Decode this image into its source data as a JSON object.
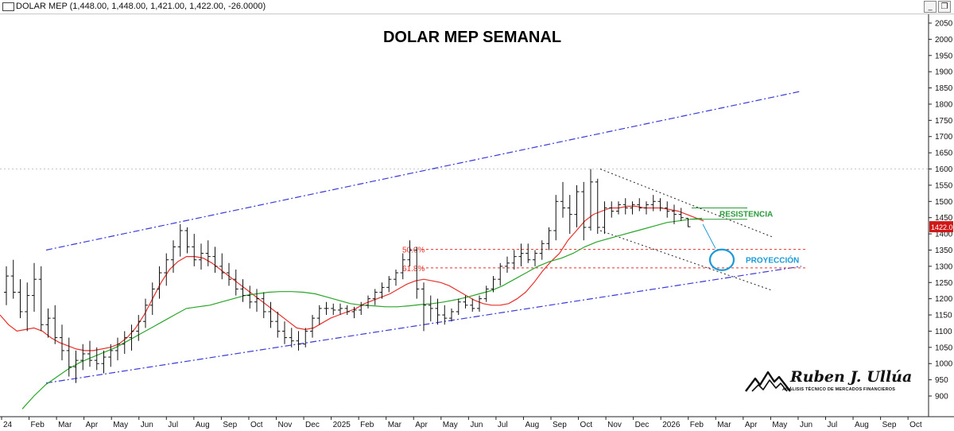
{
  "window": {
    "title": "DOLAR MEP (1,448.00, 1,448.00, 1,421.00, 1,422.00, -26.0000)",
    "minimize_symbol": "_",
    "restore_symbol": "❐"
  },
  "chart_data": {
    "type": "ohlc",
    "title": "DOLAR MEP SEMANAL",
    "last_price_label": "1422.00",
    "y_ticks": [
      2050,
      2000,
      1950,
      1900,
      1850,
      1800,
      1750,
      1700,
      1650,
      1600,
      1550,
      1500,
      1450,
      1400,
      1350,
      1300,
      1250,
      1200,
      1150,
      1100,
      1050,
      1000,
      950,
      900
    ],
    "ylim": [
      855,
      2080
    ],
    "x_ticks": [
      "24",
      "Feb",
      "Mar",
      "Apr",
      "May",
      "Jun",
      "Jul",
      "Aug",
      "Sep",
      "Oct",
      "Nov",
      "Dec",
      "2025",
      "Feb",
      "Mar",
      "Apr",
      "May",
      "Jun",
      "Jul",
      "Aug",
      "Sep",
      "Oct",
      "Nov",
      "Dec",
      "2026",
      "Feb",
      "Mar",
      "Apr",
      "May",
      "Jun",
      "Jul",
      "Aug",
      "Sep",
      "Oct"
    ],
    "fib_levels": [
      {
        "label": "50.0%",
        "value": 1352
      },
      {
        "label": "61.8%",
        "value": 1295
      }
    ],
    "high_reference": 1600,
    "annotations": {
      "resistance": "RESISTENCIA",
      "projection": "PROYECCIÓN"
    },
    "colors": {
      "fast_ma": "#e8302a",
      "slow_ma": "#2aa52a",
      "channel": "#3a3ad8",
      "fib": "#e8302a",
      "resistance_text": "#2a9a3a",
      "projection_text": "#1a9ad8",
      "bars": "#111111"
    },
    "series": [
      {
        "name": "price",
        "ohlc": [
          [
            1220,
            1300,
            1180,
            1270
          ],
          [
            1270,
            1320,
            1200,
            1220
          ],
          [
            1220,
            1260,
            1140,
            1160
          ],
          [
            1160,
            1250,
            1100,
            1210
          ],
          [
            1210,
            1310,
            1160,
            1260
          ],
          [
            1260,
            1300,
            1100,
            1120
          ],
          [
            1120,
            1170,
            1080,
            1140
          ],
          [
            1140,
            1180,
            1060,
            1080
          ],
          [
            1080,
            1120,
            1010,
            1040
          ],
          [
            1040,
            1080,
            960,
            990
          ],
          [
            990,
            1040,
            940,
            1010
          ],
          [
            1010,
            1060,
            980,
            1030
          ],
          [
            1030,
            1070,
            990,
            1010
          ],
          [
            1010,
            1050,
            980,
            1000
          ],
          [
            1000,
            1040,
            970,
            1020
          ],
          [
            1020,
            1060,
            990,
            1040
          ],
          [
            1040,
            1080,
            1010,
            1060
          ],
          [
            1060,
            1100,
            1030,
            1080
          ],
          [
            1080,
            1120,
            1040,
            1100
          ],
          [
            1100,
            1150,
            1070,
            1130
          ],
          [
            1130,
            1200,
            1110,
            1180
          ],
          [
            1180,
            1250,
            1150,
            1230
          ],
          [
            1230,
            1300,
            1200,
            1280
          ],
          [
            1280,
            1340,
            1240,
            1320
          ],
          [
            1320,
            1380,
            1280,
            1360
          ],
          [
            1360,
            1430,
            1330,
            1410
          ],
          [
            1410,
            1420,
            1340,
            1360
          ],
          [
            1360,
            1400,
            1300,
            1320
          ],
          [
            1320,
            1370,
            1290,
            1340
          ],
          [
            1340,
            1380,
            1300,
            1330
          ],
          [
            1330,
            1360,
            1280,
            1300
          ],
          [
            1300,
            1340,
            1260,
            1280
          ],
          [
            1280,
            1310,
            1240,
            1260
          ],
          [
            1260,
            1290,
            1210,
            1230
          ],
          [
            1230,
            1260,
            1190,
            1210
          ],
          [
            1210,
            1240,
            1170,
            1190
          ],
          [
            1190,
            1230,
            1160,
            1200
          ],
          [
            1200,
            1220,
            1140,
            1160
          ],
          [
            1160,
            1190,
            1110,
            1130
          ],
          [
            1130,
            1160,
            1080,
            1100
          ],
          [
            1100,
            1130,
            1060,
            1080
          ],
          [
            1080,
            1110,
            1050,
            1070
          ],
          [
            1070,
            1100,
            1040,
            1060
          ],
          [
            1060,
            1110,
            1050,
            1100
          ],
          [
            1100,
            1150,
            1080,
            1140
          ],
          [
            1140,
            1180,
            1120,
            1170
          ],
          [
            1170,
            1190,
            1150,
            1170
          ],
          [
            1170,
            1185,
            1150,
            1165
          ],
          [
            1165,
            1185,
            1150,
            1170
          ],
          [
            1170,
            1180,
            1150,
            1160
          ],
          [
            1160,
            1175,
            1140,
            1165
          ],
          [
            1165,
            1190,
            1150,
            1180
          ],
          [
            1180,
            1210,
            1170,
            1200
          ],
          [
            1200,
            1230,
            1180,
            1220
          ],
          [
            1220,
            1250,
            1200,
            1235
          ],
          [
            1235,
            1270,
            1220,
            1260
          ],
          [
            1260,
            1290,
            1240,
            1280
          ],
          [
            1280,
            1340,
            1260,
            1320
          ],
          [
            1320,
            1380,
            1300,
            1350
          ],
          [
            1350,
            1360,
            1200,
            1230
          ],
          [
            1230,
            1250,
            1100,
            1180
          ],
          [
            1180,
            1210,
            1130,
            1170
          ],
          [
            1170,
            1200,
            1120,
            1150
          ],
          [
            1150,
            1180,
            1120,
            1140
          ],
          [
            1140,
            1170,
            1130,
            1160
          ],
          [
            1160,
            1200,
            1150,
            1190
          ],
          [
            1190,
            1210,
            1170,
            1180
          ],
          [
            1180,
            1200,
            1160,
            1170
          ],
          [
            1170,
            1210,
            1160,
            1200
          ],
          [
            1200,
            1240,
            1190,
            1230
          ],
          [
            1230,
            1270,
            1220,
            1260
          ],
          [
            1260,
            1310,
            1240,
            1300
          ],
          [
            1300,
            1330,
            1280,
            1310
          ],
          [
            1310,
            1350,
            1290,
            1330
          ],
          [
            1330,
            1370,
            1300,
            1340
          ],
          [
            1340,
            1370,
            1310,
            1320
          ],
          [
            1320,
            1350,
            1300,
            1340
          ],
          [
            1340,
            1380,
            1320,
            1370
          ],
          [
            1370,
            1420,
            1350,
            1410
          ],
          [
            1410,
            1520,
            1380,
            1500
          ],
          [
            1500,
            1560,
            1450,
            1480
          ],
          [
            1480,
            1520,
            1400,
            1460
          ],
          [
            1460,
            1550,
            1420,
            1530
          ],
          [
            1530,
            1560,
            1380,
            1420
          ],
          [
            1420,
            1600,
            1410,
            1560
          ],
          [
            1560,
            1570,
            1400,
            1420
          ],
          [
            1420,
            1500,
            1400,
            1480
          ],
          [
            1480,
            1500,
            1450,
            1470
          ],
          [
            1470,
            1500,
            1460,
            1490
          ],
          [
            1490,
            1510,
            1460,
            1480
          ],
          [
            1480,
            1500,
            1460,
            1490
          ],
          [
            1490,
            1510,
            1470,
            1480
          ],
          [
            1480,
            1500,
            1460,
            1490
          ],
          [
            1490,
            1520,
            1470,
            1500
          ],
          [
            1500,
            1510,
            1470,
            1480
          ],
          [
            1480,
            1500,
            1450,
            1470
          ],
          [
            1470,
            1490,
            1430,
            1460
          ],
          [
            1460,
            1480,
            1440,
            1450
          ],
          [
            1448,
            1448,
            1421,
            1422
          ]
        ]
      },
      {
        "name": "fast_ma",
        "values": [
          1150,
          1120,
          1100,
          1105,
          1110,
          1100,
          1080,
          1065,
          1055,
          1045,
          1040,
          1040,
          1045,
          1050,
          1060,
          1080,
          1110,
          1150,
          1200,
          1250,
          1290,
          1315,
          1330,
          1330,
          1325,
          1310,
          1290,
          1270,
          1250,
          1230,
          1210,
          1190,
          1170,
          1150,
          1130,
          1110,
          1105,
          1110,
          1125,
          1140,
          1150,
          1160,
          1170,
          1185,
          1195,
          1205,
          1215,
          1230,
          1245,
          1255,
          1260,
          1255,
          1250,
          1240,
          1225,
          1210,
          1195,
          1185,
          1180,
          1180,
          1185,
          1200,
          1220,
          1250,
          1285,
          1315,
          1340,
          1380,
          1410,
          1440,
          1460,
          1470,
          1480,
          1480,
          1485,
          1485,
          1480,
          1480,
          1480,
          1475,
          1470,
          1460,
          1450,
          1440
        ]
      },
      {
        "name": "slow_ma",
        "values": [
          860,
          900,
          935,
          960,
          985,
          1005,
          1020,
          1035,
          1050,
          1070,
          1090,
          1110,
          1130,
          1150,
          1170,
          1175,
          1180,
          1190,
          1200,
          1210,
          1215,
          1220,
          1222,
          1222,
          1220,
          1215,
          1205,
          1195,
          1185,
          1180,
          1178,
          1175,
          1175,
          1178,
          1182,
          1185,
          1190,
          1197,
          1205,
          1215,
          1225,
          1240,
          1260,
          1280,
          1300,
          1315,
          1325,
          1340,
          1360,
          1375,
          1385,
          1395,
          1405,
          1415,
          1425,
          1435,
          1440,
          1445,
          1448
        ]
      }
    ]
  }
}
